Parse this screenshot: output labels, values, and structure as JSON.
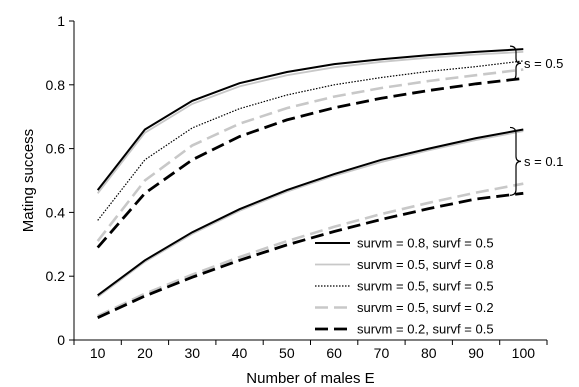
{
  "chart_data": {
    "type": "line",
    "title": "",
    "xlabel": "Number of males E",
    "ylabel": "Mating success",
    "xlim": [
      5,
      105
    ],
    "ylim": [
      0,
      1
    ],
    "x": [
      10,
      20,
      30,
      40,
      50,
      60,
      70,
      80,
      90,
      100
    ],
    "x_ticks": [
      "10",
      "20",
      "30",
      "40",
      "50",
      "60",
      "70",
      "80",
      "90",
      "100"
    ],
    "y_ticks": [
      {
        "value": 0,
        "label": "0"
      },
      {
        "value": 0.2,
        "label": "0.2"
      },
      {
        "value": 0.4,
        "label": "0.4"
      },
      {
        "value": 0.6,
        "label": "0.6"
      },
      {
        "value": 0.8,
        "label": "0.8"
      },
      {
        "value": 1,
        "label": "1"
      }
    ],
    "grid": false,
    "legend_position": "bottom-right",
    "series": [
      {
        "name": "survm = 0.8, survf = 0.5",
        "group": "s = 0.5",
        "color": "#000000",
        "style": "solid",
        "values": [
          0.47,
          0.66,
          0.75,
          0.805,
          0.84,
          0.865,
          0.88,
          0.893,
          0.903,
          0.912
        ]
      },
      {
        "name": "survm = 0.5, survf = 0.8",
        "group": "s = 0.5",
        "color": "#c8c8c8",
        "style": "solid",
        "values": [
          0.46,
          0.65,
          0.74,
          0.795,
          0.83,
          0.855,
          0.872,
          0.885,
          0.895,
          0.903
        ]
      },
      {
        "name": "survm = 0.5, survf = 0.5",
        "group": "s = 0.5",
        "color": "#000000",
        "style": "dotted",
        "values": [
          0.375,
          0.565,
          0.665,
          0.725,
          0.768,
          0.8,
          0.823,
          0.842,
          0.857,
          0.875
        ]
      },
      {
        "name": "survm = 0.5, survf = 0.2",
        "group": "s = 0.5",
        "color": "#c8c8c8",
        "style": "dashed",
        "values": [
          0.31,
          0.5,
          0.61,
          0.678,
          0.727,
          0.763,
          0.79,
          0.812,
          0.83,
          0.848
        ]
      },
      {
        "name": "survm = 0.2, survf = 0.5",
        "group": "s = 0.5",
        "color": "#000000",
        "style": "dashed",
        "values": [
          0.29,
          0.46,
          0.565,
          0.638,
          0.69,
          0.728,
          0.758,
          0.782,
          0.803,
          0.82
        ]
      },
      {
        "name": "survm = 0.8, survf = 0.5",
        "group": "s = 0.1",
        "color": "#000000",
        "style": "solid",
        "values": [
          0.14,
          0.25,
          0.338,
          0.41,
          0.47,
          0.52,
          0.565,
          0.6,
          0.633,
          0.66
        ]
      },
      {
        "name": "survm = 0.5, survf = 0.8",
        "group": "s = 0.1",
        "color": "#c8c8c8",
        "style": "solid",
        "values": [
          0.135,
          0.245,
          0.333,
          0.405,
          0.465,
          0.515,
          0.558,
          0.595,
          0.627,
          0.655
        ]
      },
      {
        "name": "survm = 0.5, survf = 0.2",
        "group": "s = 0.1",
        "color": "#c8c8c8",
        "style": "dashed",
        "values": [
          0.075,
          0.145,
          0.205,
          0.26,
          0.31,
          0.355,
          0.395,
          0.43,
          0.462,
          0.49
        ]
      },
      {
        "name": "survm = 0.2, survf = 0.5",
        "group": "s = 0.1",
        "color": "#000000",
        "style": "dashed",
        "values": [
          0.07,
          0.138,
          0.197,
          0.25,
          0.298,
          0.34,
          0.378,
          0.412,
          0.442,
          0.46
        ]
      }
    ],
    "legend": [
      {
        "label": "survm = 0.8, survf = 0.5",
        "color": "#000000",
        "style": "solid"
      },
      {
        "label": "survm = 0.5, survf = 0.8",
        "color": "#c8c8c8",
        "style": "solid"
      },
      {
        "label": "survm = 0.5, survf = 0.5",
        "color": "#000000",
        "style": "dotted"
      },
      {
        "label": "survm = 0.5, survf = 0.2",
        "color": "#c8c8c8",
        "style": "dashed"
      },
      {
        "label": "survm = 0.2, survf = 0.5",
        "color": "#000000",
        "style": "dashed"
      }
    ],
    "annotations": [
      {
        "label": "s = 0.5",
        "range": [
          0.82,
          0.915
        ]
      },
      {
        "label": "s = 0.1",
        "range": [
          0.46,
          0.66
        ]
      }
    ]
  }
}
